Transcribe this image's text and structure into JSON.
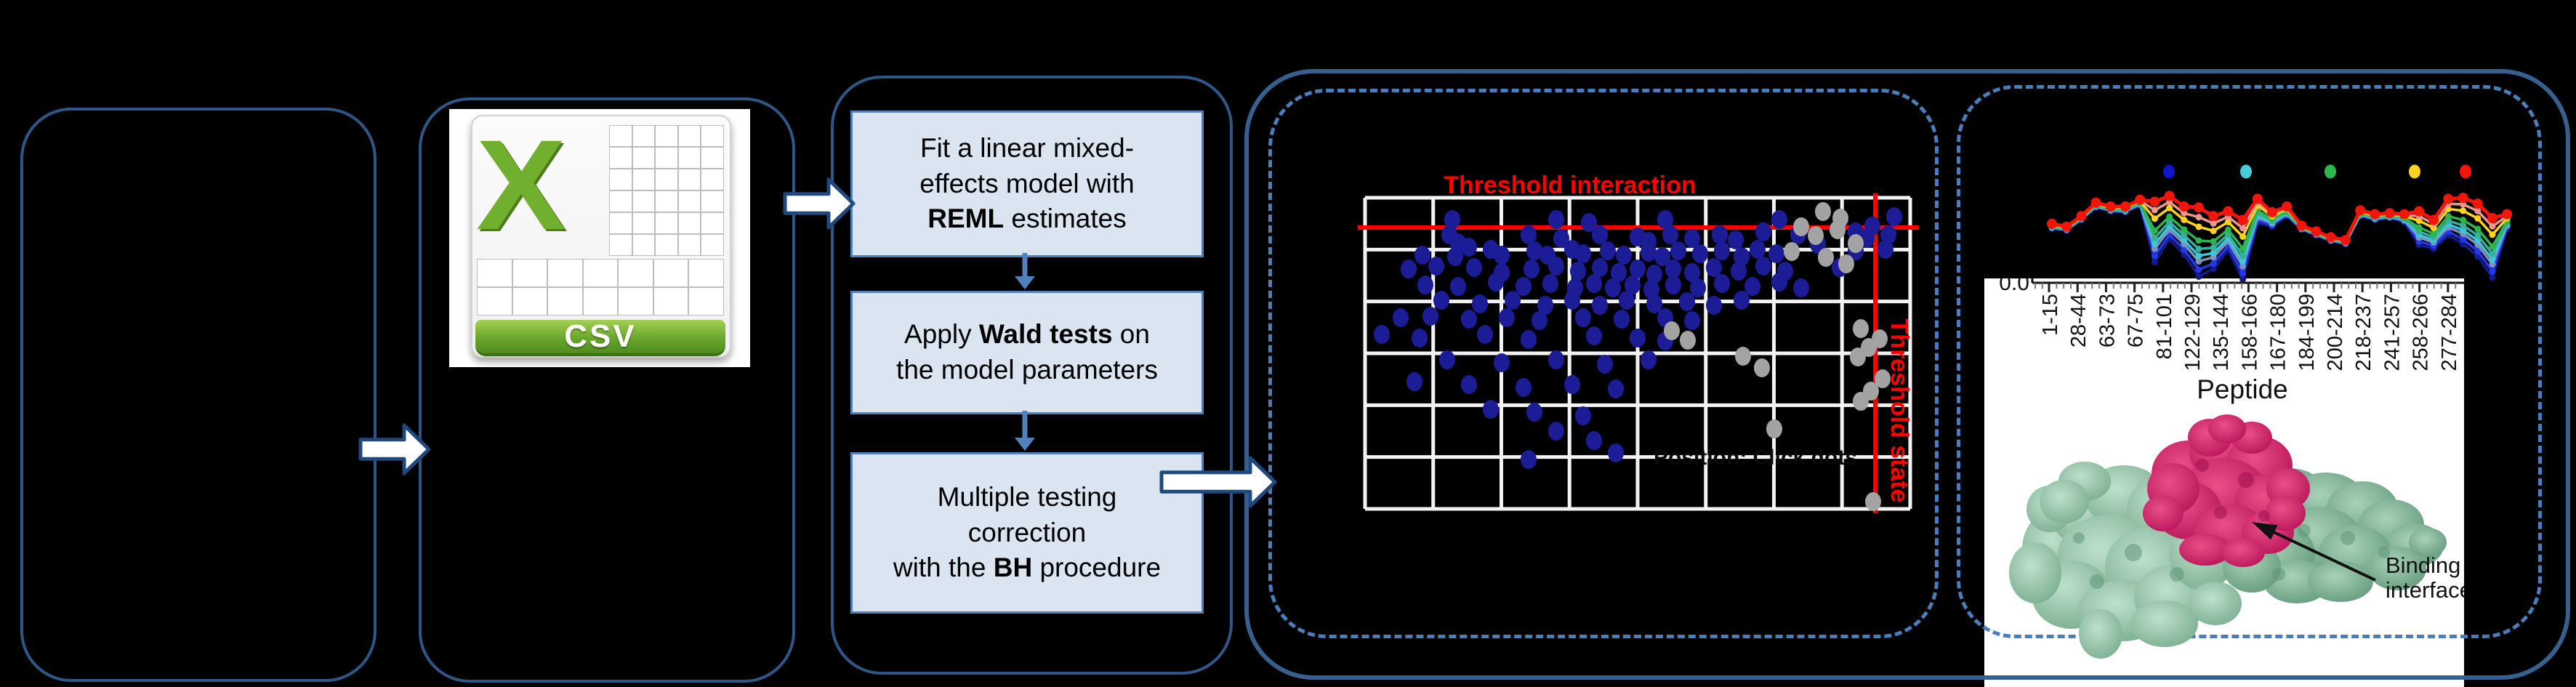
{
  "colors": {
    "background": "#000000",
    "solid_border": "#2e5686",
    "outer_frame_border": "#36618f",
    "dashed_border": "#4a7ebb",
    "step_fill": "#dbe5f1",
    "step_border": "#4f81bd",
    "block_arrow_fill": "#ffffff",
    "block_arrow_stroke": "#1f497d",
    "connector_blue": "#4f81bd",
    "threshold_red": "#ff0000",
    "grid_white": "#f2f2f2",
    "scatter_blue": "#1c1c96",
    "scatter_gray": "#a3a3a3",
    "csv_green": "#71b02f"
  },
  "csv_icon": {
    "banner_label": "CSV",
    "letter": "X"
  },
  "flowchart": {
    "steps": [
      {
        "name": "fit-model",
        "lines": [
          [
            {
              "t": "Fit a linear mixed-"
            }
          ],
          [
            {
              "t": "effects model with"
            }
          ],
          [
            {
              "t": "REML",
              "b": 1
            },
            {
              "t": " estimates"
            }
          ]
        ]
      },
      {
        "name": "wald-tests",
        "lines": [
          [
            {
              "t": "Apply "
            },
            {
              "t": "Wald tests",
              "b": 1
            },
            {
              "t": " on"
            }
          ],
          [
            {
              "t": "the model parameters"
            }
          ]
        ]
      },
      {
        "name": "multiple-testing",
        "lines": [
          [
            {
              "t": "Multiple testing"
            }
          ],
          [
            {
              "t": "correction"
            }
          ],
          [
            {
              "t": "with the "
            },
            {
              "t": "BH",
              "b": 1
            },
            {
              "t": " procedure"
            }
          ]
        ]
      }
    ]
  },
  "protein": {
    "label_lines": [
      "Binding",
      "interface"
    ],
    "peptide_axis_label": "Peptide",
    "y_tick": "0.0"
  },
  "chart_data": [
    {
      "type": "scatter",
      "title": "Threshold interaction",
      "vline_label": "Threshold state",
      "ghost_label": "Position: Click dots",
      "plot": {
        "x0": 1878,
        "x1": 2628,
        "y0": 272,
        "y1": 700,
        "v_lines": 9,
        "h_lines": 7
      },
      "threshold_hline_y": 313,
      "threshold_vline_x": 2580,
      "grid": true,
      "blue_points": [
        [
          1998,
          302
        ],
        [
          2141,
          302
        ],
        [
          2186,
          306
        ],
        [
          2291,
          302
        ],
        [
          2448,
          302
        ],
        [
          2606,
          298
        ],
        [
          2576,
          311
        ],
        [
          2553,
          319
        ],
        [
          1994,
          323
        ],
        [
          2006,
          334
        ],
        [
          2021,
          340
        ],
        [
          2103,
          323
        ],
        [
          2148,
          328
        ],
        [
          2201,
          323
        ],
        [
          2253,
          326
        ],
        [
          2268,
          332
        ],
        [
          2298,
          323
        ],
        [
          2328,
          328
        ],
        [
          2366,
          323
        ],
        [
          2388,
          330
        ],
        [
          2426,
          319
        ],
        [
          2474,
          323
        ],
        [
          2568,
          328
        ],
        [
          2598,
          323
        ],
        [
          2501,
          336
        ],
        [
          1957,
          351
        ],
        [
          2002,
          353
        ],
        [
          2051,
          343
        ],
        [
          2066,
          351
        ],
        [
          2111,
          345
        ],
        [
          2129,
          351
        ],
        [
          2163,
          343
        ],
        [
          2178,
          349
        ],
        [
          2212,
          345
        ],
        [
          2234,
          351
        ],
        [
          2268,
          347
        ],
        [
          2287,
          353
        ],
        [
          2309,
          345
        ],
        [
          2339,
          349
        ],
        [
          2369,
          345
        ],
        [
          2396,
          353
        ],
        [
          2418,
          343
        ],
        [
          2444,
          349
        ],
        [
          2553,
          345
        ],
        [
          2594,
          343
        ],
        [
          1938,
          370
        ],
        [
          1976,
          366
        ],
        [
          2028,
          368
        ],
        [
          2066,
          375
        ],
        [
          2107,
          370
        ],
        [
          2141,
          366
        ],
        [
          2171,
          373
        ],
        [
          2201,
          368
        ],
        [
          2227,
          375
        ],
        [
          2253,
          370
        ],
        [
          2276,
          377
        ],
        [
          2302,
          370
        ],
        [
          2328,
          375
        ],
        [
          2358,
          368
        ],
        [
          2392,
          373
        ],
        [
          2426,
          366
        ],
        [
          2456,
          373
        ],
        [
          2531,
          368
        ],
        [
          1961,
          392
        ],
        [
          2006,
          394
        ],
        [
          2058,
          388
        ],
        [
          2096,
          394
        ],
        [
          2133,
          390
        ],
        [
          2167,
          396
        ],
        [
          2193,
          390
        ],
        [
          2219,
          396
        ],
        [
          2246,
          392
        ],
        [
          2272,
          398
        ],
        [
          2302,
          392
        ],
        [
          2336,
          396
        ],
        [
          2369,
          390
        ],
        [
          2411,
          394
        ],
        [
          2448,
          388
        ],
        [
          2478,
          396
        ],
        [
          1983,
          413
        ],
        [
          2036,
          418
        ],
        [
          2081,
          413
        ],
        [
          2126,
          420
        ],
        [
          2163,
          413
        ],
        [
          2201,
          420
        ],
        [
          2238,
          413
        ],
        [
          2276,
          418
        ],
        [
          2321,
          415
        ],
        [
          2358,
          420
        ],
        [
          2396,
          413
        ],
        [
          1927,
          437
        ],
        [
          1968,
          435
        ],
        [
          2021,
          439
        ],
        [
          2073,
          437
        ],
        [
          2118,
          441
        ],
        [
          2178,
          437
        ],
        [
          2231,
          439
        ],
        [
          2291,
          437
        ],
        [
          2328,
          441
        ],
        [
          1901,
          460
        ],
        [
          1953,
          465
        ],
        [
          2043,
          460
        ],
        [
          2103,
          467
        ],
        [
          2193,
          462
        ],
        [
          2253,
          465
        ],
        [
          2291,
          469
        ],
        [
          1991,
          495
        ],
        [
          2066,
          499
        ],
        [
          2141,
          495
        ],
        [
          2208,
          501
        ],
        [
          2268,
          495
        ],
        [
          1946,
          525
        ],
        [
          2021,
          529
        ],
        [
          2096,
          533
        ],
        [
          2163,
          529
        ],
        [
          2223,
          535
        ],
        [
          2051,
          563
        ],
        [
          2111,
          567
        ],
        [
          2178,
          572
        ],
        [
          2141,
          593
        ],
        [
          2193,
          606
        ],
        [
          2223,
          623
        ],
        [
          2103,
          632
        ]
      ],
      "gray_points": [
        [
          2508,
          291
        ],
        [
          2532,
          300
        ],
        [
          2478,
          312
        ],
        [
          2498,
          324
        ],
        [
          2528,
          316
        ],
        [
          2553,
          335
        ],
        [
          2465,
          346
        ],
        [
          2512,
          354
        ],
        [
          2540,
          363
        ],
        [
          2300,
          455
        ],
        [
          2322,
          468
        ],
        [
          2398,
          490
        ],
        [
          2424,
          506
        ],
        [
          2560,
          452
        ],
        [
          2586,
          466
        ],
        [
          2571,
          478
        ],
        [
          2556,
          491
        ],
        [
          2590,
          521
        ],
        [
          2574,
          538
        ],
        [
          2560,
          552
        ],
        [
          2441,
          590
        ],
        [
          2577,
          690
        ]
      ]
    },
    {
      "type": "line",
      "xlabel": "Peptide",
      "y_tick_label": "0.0",
      "categories": [
        "1-15",
        "28-44",
        "63-73",
        "67-75",
        "81-101",
        "122-129",
        "135-144",
        "158-166",
        "167-180",
        "184-199",
        "200-214",
        "218-237",
        "241-257",
        "258-266",
        "277-284"
      ],
      "x0": 2823,
      "dx": 20.2,
      "n": 32,
      "axis_y": 387,
      "top_y": 255,
      "red_profile": [
        0.6,
        0.57,
        0.68,
        0.82,
        0.78,
        0.78,
        0.85,
        0.83,
        0.89,
        0.78,
        0.77,
        0.68,
        0.73,
        0.64,
        0.86,
        0.72,
        0.78,
        0.58,
        0.52,
        0.46,
        0.43,
        0.74,
        0.7,
        0.71,
        0.7,
        0.73,
        0.64,
        0.86,
        0.87,
        0.81,
        0.66,
        0.7
      ],
      "dip_depth": [
        0.05,
        0.04,
        0.04,
        0.05,
        0.05,
        0.06,
        0.06,
        0.63,
        0.45,
        0.5,
        0.72,
        0.55,
        0.4,
        0.62,
        0.25,
        0.15,
        0.1,
        0.04,
        0.04,
        0.04,
        0.04,
        0.06,
        0.06,
        0.05,
        0.08,
        0.35,
        0.3,
        0.38,
        0.48,
        0.55,
        0.62,
        0.15
      ],
      "series": [
        {
          "name": "navy",
          "color": "#141b8c",
          "factor": 1.0
        },
        {
          "name": "blue",
          "color": "#2438e8",
          "factor": 0.9
        },
        {
          "name": "steel",
          "color": "#7d90c0",
          "factor": 0.78
        },
        {
          "name": "cyan",
          "color": "#3ec6d8",
          "factor": 0.7
        },
        {
          "name": "teal",
          "color": "#35b09a",
          "factor": 0.6
        },
        {
          "name": "green",
          "color": "#2db44a",
          "factor": 0.48
        },
        {
          "name": "yellow",
          "color": "#ffd21c",
          "factor": 0.28
        },
        {
          "name": "salmon",
          "color": "#f0958c",
          "factor": 0.14
        },
        {
          "name": "red",
          "color": "#f2150a",
          "factor": 0.0
        }
      ],
      "legend_dots": [
        {
          "x": 2984,
          "y": 236,
          "color": "#1016c8"
        },
        {
          "x": 3090,
          "y": 236,
          "color": "#45cdd8"
        },
        {
          "x": 3206,
          "y": 236,
          "color": "#2db84b"
        },
        {
          "x": 3322,
          "y": 236,
          "color": "#ffd21c"
        },
        {
          "x": 3392,
          "y": 236,
          "color": "#f2150a"
        }
      ],
      "legend_position": "top",
      "grid": false
    }
  ]
}
